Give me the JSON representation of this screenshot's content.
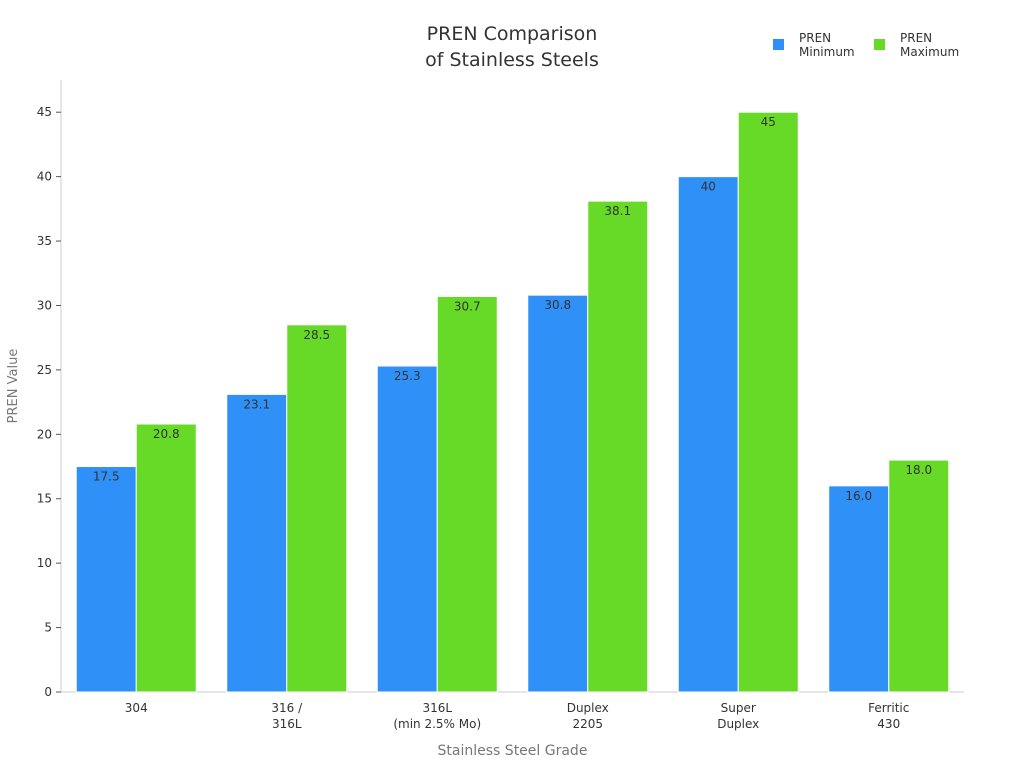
{
  "chart_data": {
    "type": "bar",
    "title_lines": [
      "PREN Comparison",
      "of Stainless Steels"
    ],
    "xlabel": "Stainless Steel Grade",
    "ylabel": "PREN Value",
    "ylim": [
      0,
      47.5
    ],
    "yticks": [
      0,
      5,
      10,
      15,
      20,
      25,
      30,
      35,
      40,
      45
    ],
    "grid": false,
    "legend_position": "top-right",
    "categories": [
      [
        "304"
      ],
      [
        "316 /",
        "316L"
      ],
      [
        "316L",
        "(min 2.5% Mo)"
      ],
      [
        "Duplex",
        "2205"
      ],
      [
        "Super",
        "Duplex"
      ],
      [
        "Ferritic",
        "430"
      ]
    ],
    "series": [
      {
        "name_lines": [
          "PREN",
          "Minimum"
        ],
        "color": "#2f91f7",
        "values": [
          17.5,
          23.1,
          25.3,
          30.8,
          40,
          16.0
        ],
        "labels": [
          "17.5",
          "23.1",
          "25.3",
          "30.8",
          "40",
          "16.0"
        ]
      },
      {
        "name_lines": [
          "PREN",
          "Maximum"
        ],
        "color": "#67da27",
        "values": [
          20.8,
          28.5,
          30.7,
          38.1,
          45,
          18.0
        ],
        "labels": [
          "20.8",
          "28.5",
          "30.7",
          "38.1",
          "45",
          "18.0"
        ]
      }
    ]
  }
}
